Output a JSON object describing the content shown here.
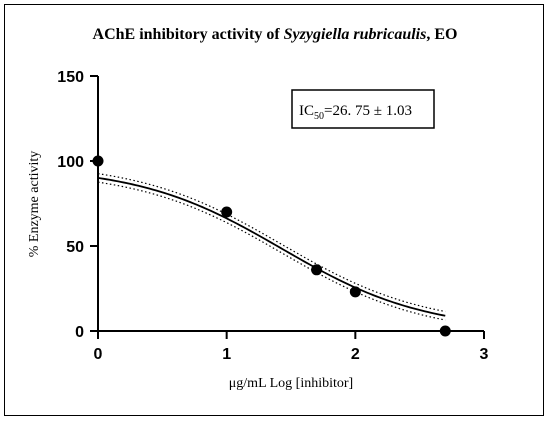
{
  "title": {
    "prefix": "AChE inhibitory activity of ",
    "species": "Syzygiella rubricaulis",
    "suffix": ", EO"
  },
  "annotation": {
    "ic_label": "IC",
    "ic_sub": "50",
    "ic_value": "=26. 75 ± 1.03"
  },
  "chart_data": {
    "type": "scatter",
    "title": "AChE inhibitory activity of Syzygiella rubricaulis, EO",
    "xlabel": "μg/mL Log [inhibitor]",
    "ylabel": "% Enzyme activity",
    "xlim": [
      0,
      3
    ],
    "ylim": [
      0,
      150
    ],
    "xticks": [
      0,
      1,
      2,
      3
    ],
    "yticks": [
      0,
      50,
      100,
      150
    ],
    "xtick_labels": [
      "0",
      "1",
      "2",
      "3"
    ],
    "ytick_labels": [
      "0",
      "50",
      "100",
      "150"
    ],
    "grid": false,
    "points": {
      "x": [
        0,
        1,
        1.699,
        2,
        2.699
      ],
      "y": [
        100,
        70,
        36,
        23,
        0
      ]
    },
    "fit_curve": {
      "model": "sigmoidal dose-response",
      "top": 97,
      "bottom": 0,
      "log_ic50": 1.427,
      "hill_slope": -0.78,
      "x_range": [
        0,
        2.699
      ]
    },
    "confidence_band": {
      "style": "dotted",
      "offset": 2.5
    }
  }
}
